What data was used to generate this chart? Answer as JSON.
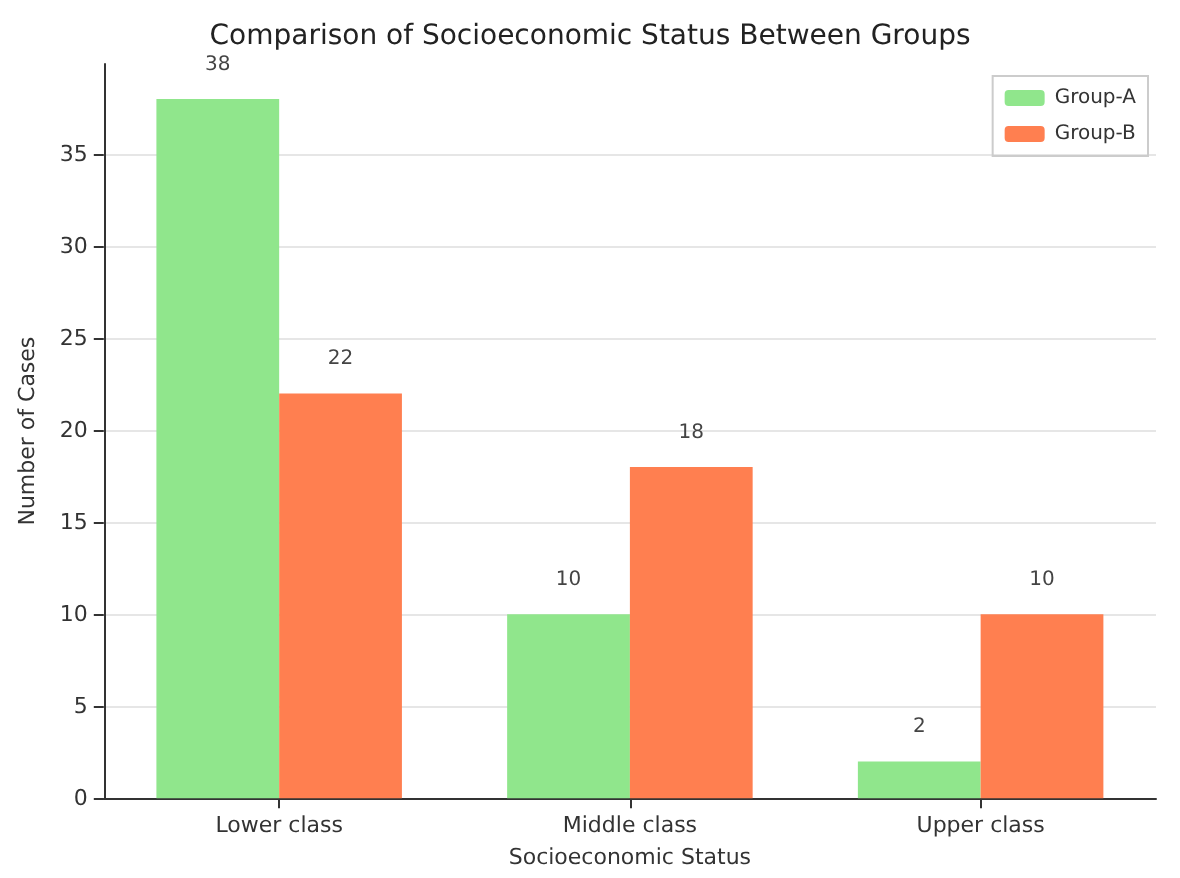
{
  "chart_data": {
    "type": "bar",
    "title": "Comparison of Socioeconomic Status Between Groups",
    "xlabel": "Socioeconomic Status",
    "ylabel": "Number of Cases",
    "categories": [
      "Lower class",
      "Middle class",
      "Upper class"
    ],
    "series": [
      {
        "name": "Group-A",
        "color": "#90e68c",
        "values": [
          38,
          10,
          2
        ]
      },
      {
        "name": "Group-B",
        "color": "#ff7f50",
        "values": [
          22,
          18,
          10
        ]
      }
    ],
    "ylim": [
      0,
      39.9
    ],
    "yticks": [
      0,
      5,
      10,
      15,
      20,
      25,
      30,
      35
    ],
    "grid": "y",
    "legend": "top right",
    "data_labels": true
  }
}
